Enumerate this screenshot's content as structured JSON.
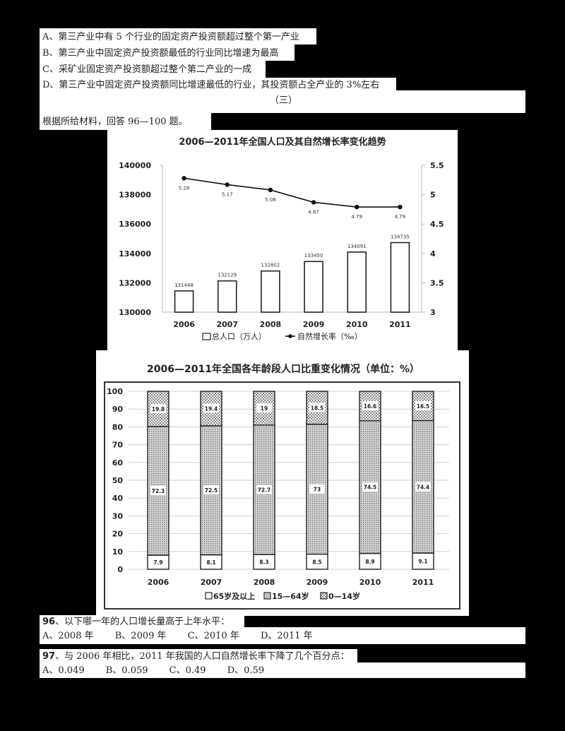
{
  "prev_question_options": {
    "A": "A、第三产业中有 5 个行业的固定资产投资额超过整个第一产业",
    "B": "B、第三产业中固定资产投资额最低的行业同比增速为最高",
    "C": "C、采矿业固定资产投资额超过整个第二产业的一成",
    "D": "D、第三产业中固定资产投资额同比增速最低的行业，其投资额占全产业的 3%左右"
  },
  "section_marker": "（三）",
  "instructions": "根据所给材料，回答 96—100 题。",
  "chart_data": [
    {
      "type": "bar+line",
      "title": "2006—2011年全国人口及其自然增长率变化趋势",
      "categories": [
        "2006",
        "2007",
        "2008",
        "2009",
        "2010",
        "2011"
      ],
      "series": [
        {
          "name": "总人口（万人）",
          "kind": "bar",
          "axis": "left",
          "values": [
            131448,
            132129,
            132802,
            133450,
            134091,
            134735
          ]
        },
        {
          "name": "自然增长率（‰）",
          "kind": "line",
          "axis": "right",
          "values": [
            5.28,
            5.17,
            5.08,
            4.87,
            4.79,
            4.79
          ]
        }
      ],
      "left_axis": {
        "ylim": [
          130000,
          140000
        ],
        "ticks": [
          130000,
          132000,
          134000,
          136000,
          138000,
          140000
        ]
      },
      "right_axis": {
        "ylim": [
          3,
          5.5
        ],
        "ticks": [
          "3",
          "3.5",
          "4",
          "4.5",
          "5",
          "5.5"
        ]
      },
      "legend": [
        "总人口（万人）",
        "自然增长率（‰）"
      ],
      "legend_position": "bottom",
      "grid": false
    },
    {
      "type": "stacked_bar",
      "title": "2006—2011年全国各年龄段人口比重变化情况（单位：%）",
      "categories": [
        "2006",
        "2007",
        "2008",
        "2009",
        "2010",
        "2011"
      ],
      "series": [
        {
          "name": "65岁及以上",
          "values": [
            7.9,
            8.1,
            8.3,
            8.5,
            8.9,
            9.1
          ]
        },
        {
          "name": "15—64岁",
          "values": [
            72.3,
            72.5,
            72.7,
            73,
            74.5,
            74.4
          ]
        },
        {
          "name": "0—14岁",
          "values": [
            19.8,
            19.4,
            19,
            18.5,
            16.6,
            16.5
          ]
        }
      ],
      "labels": {
        "s0": [
          "7.9",
          "8.1",
          "8.3",
          "8.5",
          "8.9",
          "9.1"
        ],
        "s1": [
          "72.3",
          "72.5",
          "72.7",
          "73",
          "74.5",
          "74.4"
        ],
        "s2": [
          "19.8",
          "19.4",
          "19",
          "18.5",
          "16.6",
          "16.5"
        ]
      },
      "ylim": [
        0,
        100
      ],
      "yticks": [
        "0",
        "10",
        "20",
        "30",
        "40",
        "50",
        "60",
        "70",
        "80",
        "90",
        "100"
      ],
      "legend": [
        "65岁及以上",
        "15—64岁",
        "0—14岁"
      ],
      "legend_position": "bottom",
      "grid": true
    }
  ],
  "questions": [
    {
      "number": "96",
      "stem": "、以下哪一年的人口增长量高于上年水平：",
      "options": [
        "A、2008 年",
        "B、2009 年",
        "C、2010 年",
        "D、2011 年"
      ]
    },
    {
      "number": "97",
      "stem": "、与 2006 年相比，2011 年我国的人口自然增长率下降了几个百分点：",
      "options": [
        "A、0.049",
        "B、0.059",
        "C、0.49",
        "D、0.59"
      ]
    }
  ]
}
